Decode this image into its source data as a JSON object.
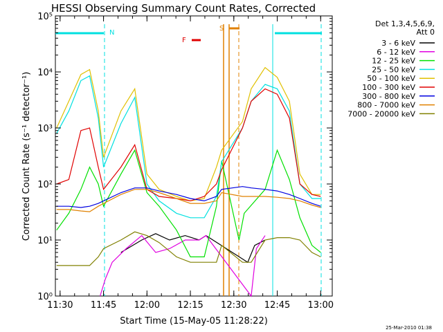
{
  "chart_data": {
    "type": "line",
    "title": "HESSI Observing Summary Count Rates, Corrected",
    "xlabel": "Start Time (15-May-05 11:28:22)",
    "ylabel": "Corrected Count Rate (s⁻¹ detector⁻¹)",
    "y_scale": "log",
    "xlim": [
      "11:28:22",
      "13:04:00"
    ],
    "ylim": [
      1,
      100000
    ],
    "x_ticks": [
      "11:30",
      "11:45",
      "12:00",
      "12:15",
      "12:30",
      "12:45",
      "13:00"
    ],
    "y_ticks": [
      "10⁰",
      "10¹",
      "10²",
      "10³",
      "10⁴",
      "10⁵"
    ],
    "legend_header": [
      "Det 1,3,4,5,6,9,",
      "Att 0"
    ],
    "legend_position": "right",
    "timestamp": "25-Mar-2010 01:38",
    "series": [
      {
        "name": "3 - 6 keV",
        "color": "#000000",
        "x": [
          11.55,
          11.72,
          11.85,
          11.97,
          12.05,
          12.13,
          12.22,
          12.3,
          12.34,
          12.58,
          12.62,
          12.68
        ],
        "y": [
          null,
          null,
          6,
          10,
          13,
          10,
          12,
          10,
          12,
          4,
          8,
          10
        ]
      },
      {
        "name": "6 - 12 keV",
        "color": "#e000e0",
        "x": [
          11.73,
          11.76,
          11.8,
          11.88,
          11.97,
          12.05,
          12.13,
          12.22,
          12.3,
          12.34,
          12.6,
          12.63,
          12.68
        ],
        "y": [
          1,
          2,
          4,
          7,
          12,
          6,
          7,
          10,
          10,
          12,
          1,
          7,
          12
        ]
      },
      {
        "name": "12 - 25 keV",
        "color": "#00e000",
        "x": [
          11.48,
          11.55,
          11.62,
          11.67,
          11.72,
          11.75,
          11.85,
          11.93,
          12.0,
          12.07,
          12.17,
          12.25,
          12.33,
          12.4,
          12.43,
          12.53,
          12.56,
          12.68,
          12.75,
          12.82,
          12.88,
          12.95,
          13.0
        ],
        "y": [
          15,
          30,
          80,
          200,
          100,
          40,
          150,
          400,
          70,
          40,
          15,
          5,
          5,
          40,
          260,
          10,
          30,
          80,
          400,
          120,
          25,
          8,
          6
        ]
      },
      {
        "name": "25 - 50 keV",
        "color": "#00e0e0",
        "x": [
          11.48,
          11.55,
          11.62,
          11.67,
          11.72,
          11.75,
          11.85,
          11.93,
          12.0,
          12.07,
          12.17,
          12.25,
          12.33,
          12.4,
          12.43,
          12.55,
          12.6,
          12.68,
          12.75,
          12.82,
          12.88,
          12.95,
          13.0
        ],
        "y": [
          800,
          2000,
          7000,
          8500,
          1500,
          200,
          1200,
          3500,
          100,
          50,
          30,
          25,
          25,
          60,
          250,
          1000,
          3000,
          6000,
          5000,
          2000,
          100,
          55,
          55
        ]
      },
      {
        "name": "50 - 100 keV",
        "color": "#e0c000",
        "x": [
          11.48,
          11.55,
          11.62,
          11.67,
          11.72,
          11.75,
          11.85,
          11.93,
          12.0,
          12.07,
          12.17,
          12.25,
          12.33,
          12.4,
          12.43,
          12.55,
          12.6,
          12.68,
          12.75,
          12.82,
          12.88,
          12.95,
          13.0
        ],
        "y": [
          1000,
          3000,
          9000,
          11000,
          2000,
          300,
          2000,
          5000,
          150,
          80,
          60,
          50,
          55,
          200,
          400,
          1300,
          5000,
          12000,
          8000,
          3000,
          150,
          65,
          65
        ]
      },
      {
        "name": "100 - 300 keV",
        "color": "#e00000",
        "x": [
          11.48,
          11.55,
          11.62,
          11.67,
          11.72,
          11.75,
          11.85,
          11.93,
          12.0,
          12.07,
          12.17,
          12.25,
          12.33,
          12.4,
          12.43,
          12.55,
          12.6,
          12.68,
          12.75,
          12.82,
          12.88,
          12.95,
          13.0
        ],
        "y": [
          100,
          120,
          900,
          1000,
          200,
          80,
          200,
          500,
          80,
          60,
          55,
          50,
          60,
          100,
          180,
          1000,
          3000,
          5000,
          4000,
          1500,
          100,
          65,
          60
        ]
      },
      {
        "name": "300 - 800 keV",
        "color": "#0000e0",
        "x": [
          11.48,
          11.55,
          11.62,
          11.67,
          11.72,
          11.75,
          11.85,
          11.93,
          12.0,
          12.07,
          12.17,
          12.25,
          12.33,
          12.4,
          12.43,
          12.55,
          12.6,
          12.68,
          12.75,
          12.82,
          12.88,
          12.95,
          13.0
        ],
        "y": [
          40,
          40,
          38,
          40,
          45,
          50,
          70,
          85,
          85,
          75,
          65,
          55,
          50,
          60,
          80,
          90,
          85,
          80,
          75,
          65,
          55,
          45,
          40
        ]
      },
      {
        "name": "800 - 7000 keV",
        "color": "#e08000",
        "x": [
          11.48,
          11.55,
          11.62,
          11.67,
          11.72,
          11.75,
          11.85,
          11.93,
          12.0,
          12.07,
          12.17,
          12.25,
          12.33,
          12.4,
          12.43,
          12.55,
          12.6,
          12.68,
          12.75,
          12.82,
          12.88,
          12.95,
          13.0
        ],
        "y": [
          35,
          35,
          33,
          32,
          40,
          45,
          65,
          80,
          80,
          70,
          55,
          45,
          45,
          50,
          70,
          60,
          60,
          60,
          58,
          55,
          50,
          42,
          38
        ]
      },
      {
        "name": "7000 - 20000 keV",
        "color": "#808000",
        "x": [
          11.48,
          11.55,
          11.62,
          11.67,
          11.72,
          11.75,
          11.85,
          11.93,
          12.0,
          12.07,
          12.17,
          12.25,
          12.33,
          12.4,
          12.43,
          12.55,
          12.6,
          12.68,
          12.75,
          12.82,
          12.88,
          12.95,
          13.0
        ],
        "y": [
          3.5,
          3.5,
          3.5,
          3.5,
          5,
          7,
          10,
          14,
          12,
          9,
          5,
          4,
          4,
          4,
          8,
          4,
          4,
          10,
          11,
          11,
          10,
          6,
          5
        ]
      }
    ],
    "state_bars": [
      {
        "label": "N",
        "color": "#00e0e0"
      },
      {
        "label": "F",
        "color": "#e00000"
      },
      {
        "label": "S",
        "color": "#e08000"
      }
    ]
  }
}
